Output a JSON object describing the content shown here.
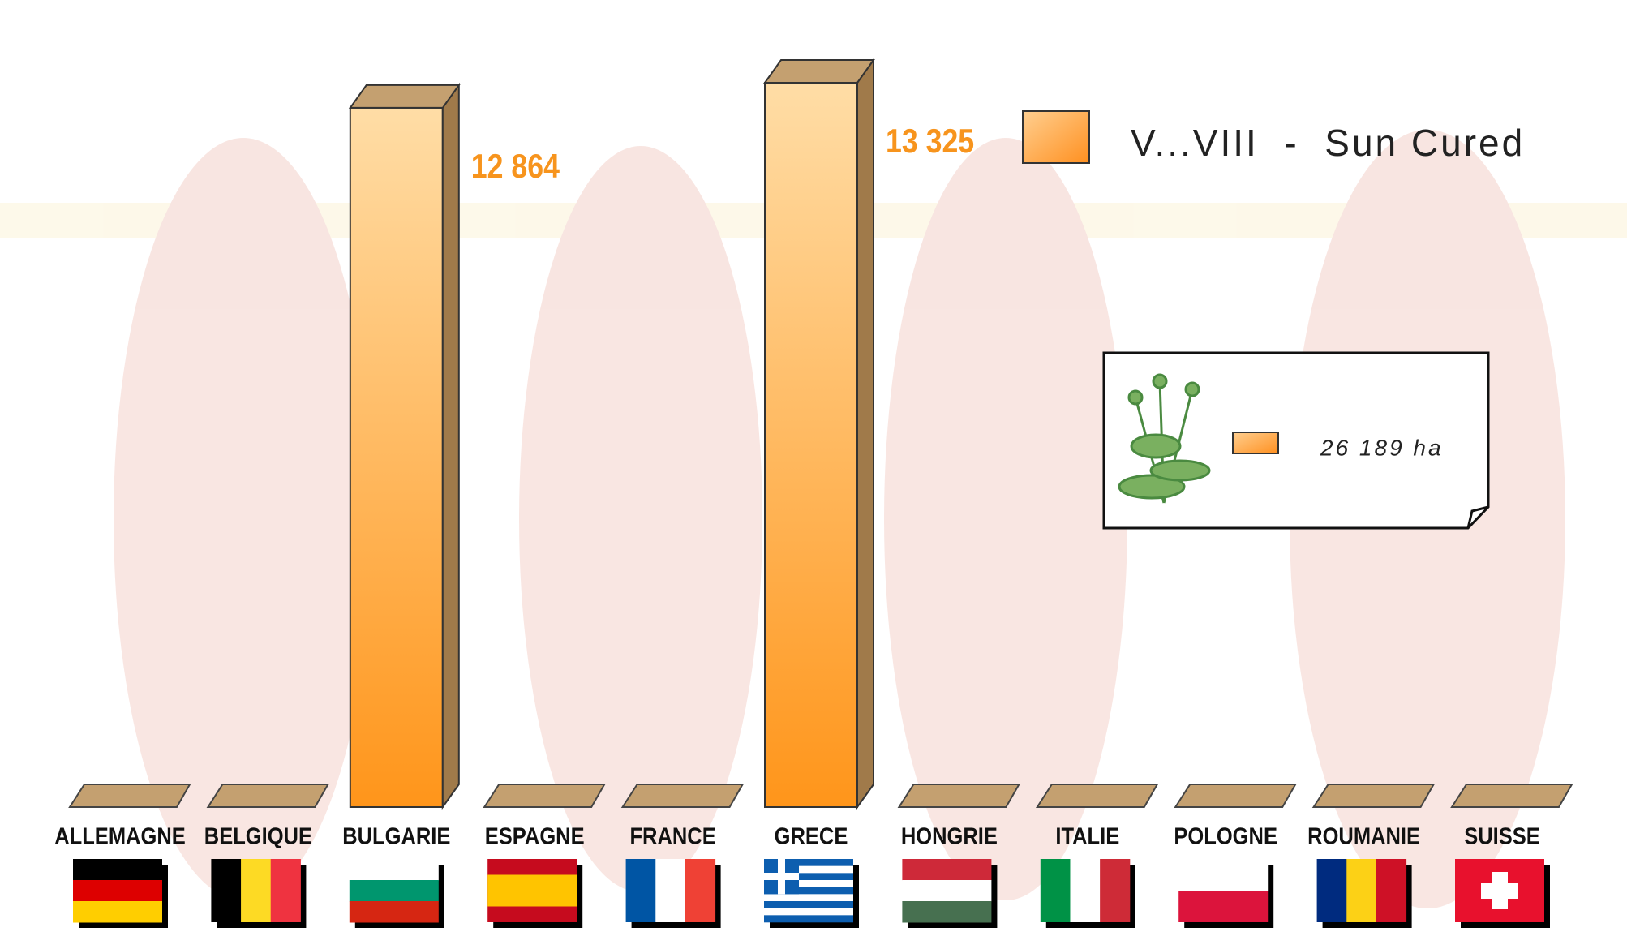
{
  "chart_data": {
    "type": "bar3d",
    "categories": [
      "ALLEMAGNE",
      "BELGIQUE",
      "BULGARIE",
      "ESPAGNE",
      "FRANCE",
      "GRECE",
      "HONGRIE",
      "ITALIE",
      "POLOGNE",
      "ROUMANIE",
      "SUISSE"
    ],
    "series": [
      {
        "name": "V...VIII  -  Sun Cured",
        "color": "#ff9a1e",
        "values": [
          0,
          0,
          12864,
          0,
          0,
          13325,
          0,
          0,
          0,
          0,
          0
        ],
        "value_labels": [
          null,
          null,
          "12 864",
          null,
          null,
          "13 325",
          null,
          null,
          null,
          null,
          null
        ]
      }
    ],
    "total_label": "26 189 ha"
  }
}
